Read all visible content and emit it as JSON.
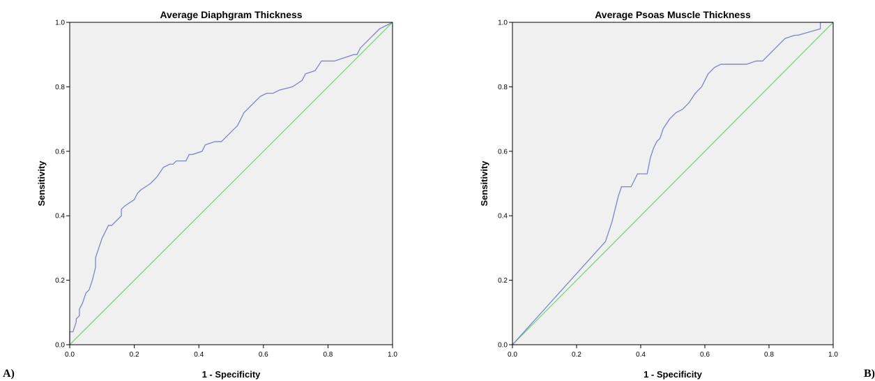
{
  "chart_data": [
    {
      "type": "line",
      "panel_label": "A)",
      "title": "Average Diaphgram Thickness",
      "xlabel": "1 - Specificity",
      "ylabel": "Sensitivity",
      "xlim": [
        0,
        1
      ],
      "ylim": [
        0,
        1
      ],
      "xticks": [
        "0.0",
        "0.2",
        "0.4",
        "0.6",
        "0.8",
        "1.0"
      ],
      "yticks": [
        "0.0",
        "0.2",
        "0.4",
        "0.6",
        "0.8",
        "1.0"
      ],
      "grid": false,
      "colors": {
        "roc": "#7b86c4",
        "reference": "#7fd07f",
        "background": "#f0f0f0"
      },
      "series": [
        {
          "x": [
            0.0,
            0.0,
            0.01,
            0.02,
            0.02,
            0.03,
            0.03,
            0.04,
            0.05,
            0.05,
            0.06,
            0.07,
            0.08,
            0.08,
            0.09,
            0.1,
            0.11,
            0.12,
            0.13,
            0.13,
            0.16,
            0.16,
            0.17,
            0.2,
            0.21,
            0.22,
            0.25,
            0.27,
            0.29,
            0.31,
            0.32,
            0.33,
            0.36,
            0.37,
            0.38,
            0.41,
            0.42,
            0.45,
            0.47,
            0.5,
            0.51,
            0.52,
            0.53,
            0.54,
            0.55,
            0.56,
            0.57,
            0.59,
            0.61,
            0.63,
            0.65,
            0.69,
            0.72,
            0.73,
            0.76,
            0.78,
            0.82,
            0.88,
            0.89,
            0.9,
            0.93,
            0.95,
            0.96,
            0.98,
            1.0
          ],
          "y": [
            0.0,
            0.04,
            0.04,
            0.07,
            0.08,
            0.09,
            0.11,
            0.13,
            0.16,
            0.16,
            0.17,
            0.2,
            0.24,
            0.27,
            0.3,
            0.33,
            0.35,
            0.37,
            0.37,
            0.37,
            0.4,
            0.42,
            0.43,
            0.45,
            0.47,
            0.48,
            0.5,
            0.52,
            0.55,
            0.56,
            0.56,
            0.57,
            0.57,
            0.59,
            0.59,
            0.6,
            0.62,
            0.63,
            0.63,
            0.66,
            0.67,
            0.68,
            0.7,
            0.72,
            0.73,
            0.74,
            0.75,
            0.77,
            0.78,
            0.78,
            0.79,
            0.8,
            0.82,
            0.84,
            0.85,
            0.88,
            0.88,
            0.9,
            0.9,
            0.92,
            0.95,
            0.97,
            0.98,
            0.99,
            1.0
          ]
        },
        {
          "x": [
            0,
            1
          ],
          "y": [
            0,
            1
          ]
        }
      ]
    },
    {
      "type": "line",
      "panel_label": "B)",
      "title": "Average Psoas Muscle Thickness",
      "xlabel": "1 - Specificity",
      "ylabel": "Sensitivity",
      "xlim": [
        0,
        1
      ],
      "ylim": [
        0,
        1
      ],
      "xticks": [
        "0.0",
        "0.2",
        "0.4",
        "0.6",
        "0.8",
        "1.0"
      ],
      "yticks": [
        "0.0",
        "0.2",
        "0.4",
        "0.6",
        "0.8",
        "1.0"
      ],
      "grid": false,
      "colors": {
        "roc": "#7b86c4",
        "reference": "#7fd07f",
        "background": "#f0f0f0"
      },
      "series": [
        {
          "x": [
            0.0,
            0.29,
            0.3,
            0.31,
            0.32,
            0.33,
            0.34,
            0.37,
            0.39,
            0.4,
            0.42,
            0.43,
            0.44,
            0.45,
            0.46,
            0.47,
            0.49,
            0.51,
            0.53,
            0.55,
            0.57,
            0.59,
            0.6,
            0.61,
            0.63,
            0.65,
            0.73,
            0.76,
            0.78,
            0.8,
            0.83,
            0.85,
            0.88,
            0.89,
            0.96,
            0.96,
            1.0
          ],
          "y": [
            0.0,
            0.32,
            0.35,
            0.38,
            0.42,
            0.46,
            0.49,
            0.49,
            0.53,
            0.53,
            0.53,
            0.58,
            0.61,
            0.63,
            0.64,
            0.67,
            0.7,
            0.72,
            0.73,
            0.75,
            0.78,
            0.8,
            0.82,
            0.84,
            0.86,
            0.87,
            0.87,
            0.88,
            0.88,
            0.9,
            0.93,
            0.95,
            0.96,
            0.96,
            0.98,
            1.0,
            1.0
          ]
        },
        {
          "x": [
            0,
            1
          ],
          "y": [
            0,
            1
          ]
        }
      ]
    }
  ]
}
